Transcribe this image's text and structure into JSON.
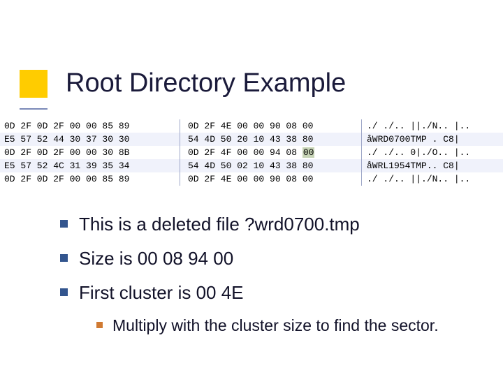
{
  "colors": {
    "accent": "#ffcc00",
    "underline": "#7a89b8",
    "bullet": "#33558e",
    "sub_bullet": "#d07a32",
    "row_hilite": "#f0f2fb",
    "cell_select": "#c7d4b7",
    "sep": "#9ea7c8"
  },
  "title": "Root Directory Example",
  "hex": {
    "rows": [
      {
        "left": "0D 2F 0D 2F 00 00 85 89",
        "mid": "0D 2F 4E 00 00 90 08 00",
        "right": "./ ./.. ||./N.. |..",
        "hilite": false
      },
      {
        "left": "E5 57 52 44 30 37 30 30",
        "mid": "54 4D 50 20 10 43 38 80",
        "right": "åWRD0700TMP . C8|",
        "hilite": true
      },
      {
        "left": "0D 2F 0D 2F 00 00 30 8B",
        "mid": "0D 2F 4F 00 00 94 08 ",
        "mid_sel": "00",
        "right": "./ ./.. 0|./O.. |..",
        "hilite": false
      },
      {
        "left": "E5 57 52 4C 31 39 35 34",
        "mid": "54 4D 50 02 10 43 38 80",
        "right": "åWRL1954TMP.. C8|",
        "hilite": true
      },
      {
        "left": "0D 2F 0D 2F 00 00 85 89",
        "mid": "0D 2F 4E 00 00 90 08 00",
        "right": "./ ./.. ||./N.. |..",
        "hilite": false
      }
    ]
  },
  "bullets": [
    {
      "text": "This is a deleted file ?wrd0700.tmp"
    },
    {
      "text": "Size is 00 08 94 00"
    },
    {
      "text": "First cluster is 00 4E"
    }
  ],
  "sub_bullet": {
    "text": "Multiply with the cluster size to find the sector."
  }
}
